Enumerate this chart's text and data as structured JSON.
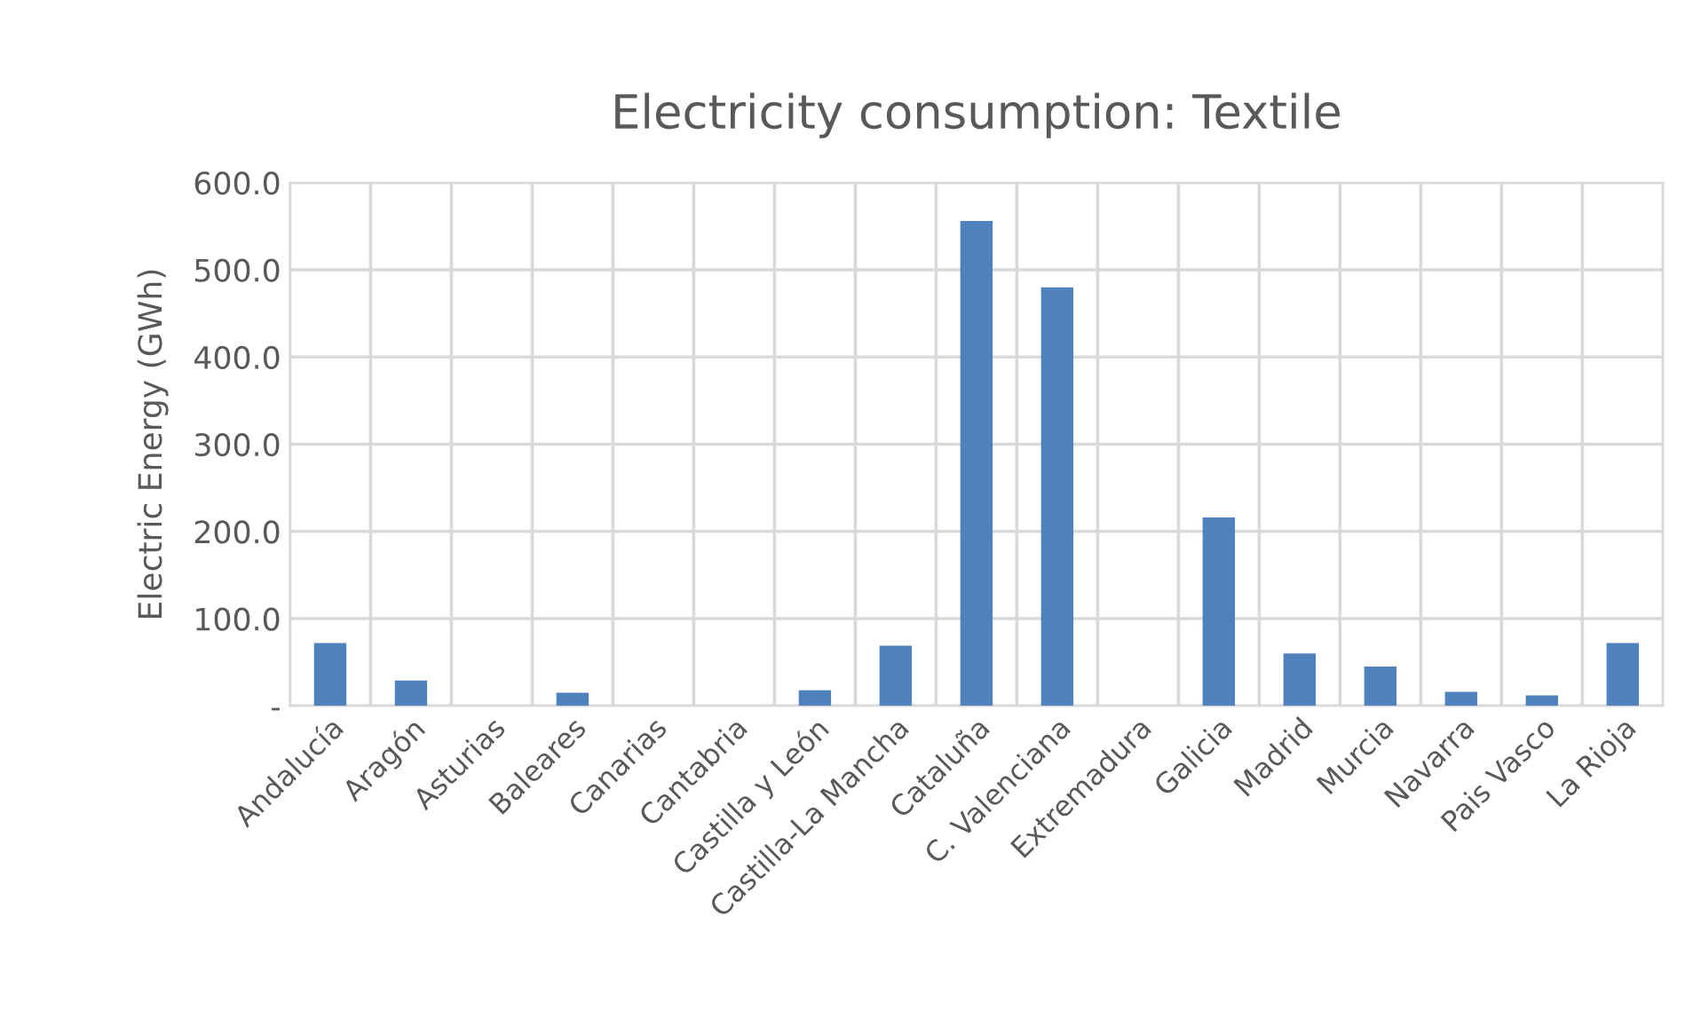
{
  "chart_data": {
    "type": "bar",
    "title": "Electricity consumption: Textile",
    "ylabel": "Electric Energy (GWh)",
    "categories": [
      "Andalucía",
      "Aragón",
      "Asturias",
      "Baleares",
      "Canarias",
      "Cantabria",
      "Castilla y León",
      "Castilla-La Mancha",
      "Cataluña",
      "C. Valenciana",
      "Extremadura",
      "Galicia",
      "Madrid",
      "Murcia",
      "Navarra",
      "Pais Vasco",
      "La Rioja"
    ],
    "values": [
      72,
      29,
      0,
      15,
      0,
      0,
      18,
      69,
      556,
      480,
      0,
      216,
      60,
      45,
      16,
      12,
      72
    ],
    "color": "#4f81bd",
    "ylim": [
      0,
      600
    ],
    "yticks": [
      {
        "value": 0,
        "label": "-"
      },
      {
        "value": 100,
        "label": "100.0"
      },
      {
        "value": 200,
        "label": "200.0"
      },
      {
        "value": 300,
        "label": "300.0"
      },
      {
        "value": 400,
        "label": "400.0"
      },
      {
        "value": 500,
        "label": "500.0"
      },
      {
        "value": 600,
        "label": "600.0"
      }
    ],
    "grid": true
  }
}
